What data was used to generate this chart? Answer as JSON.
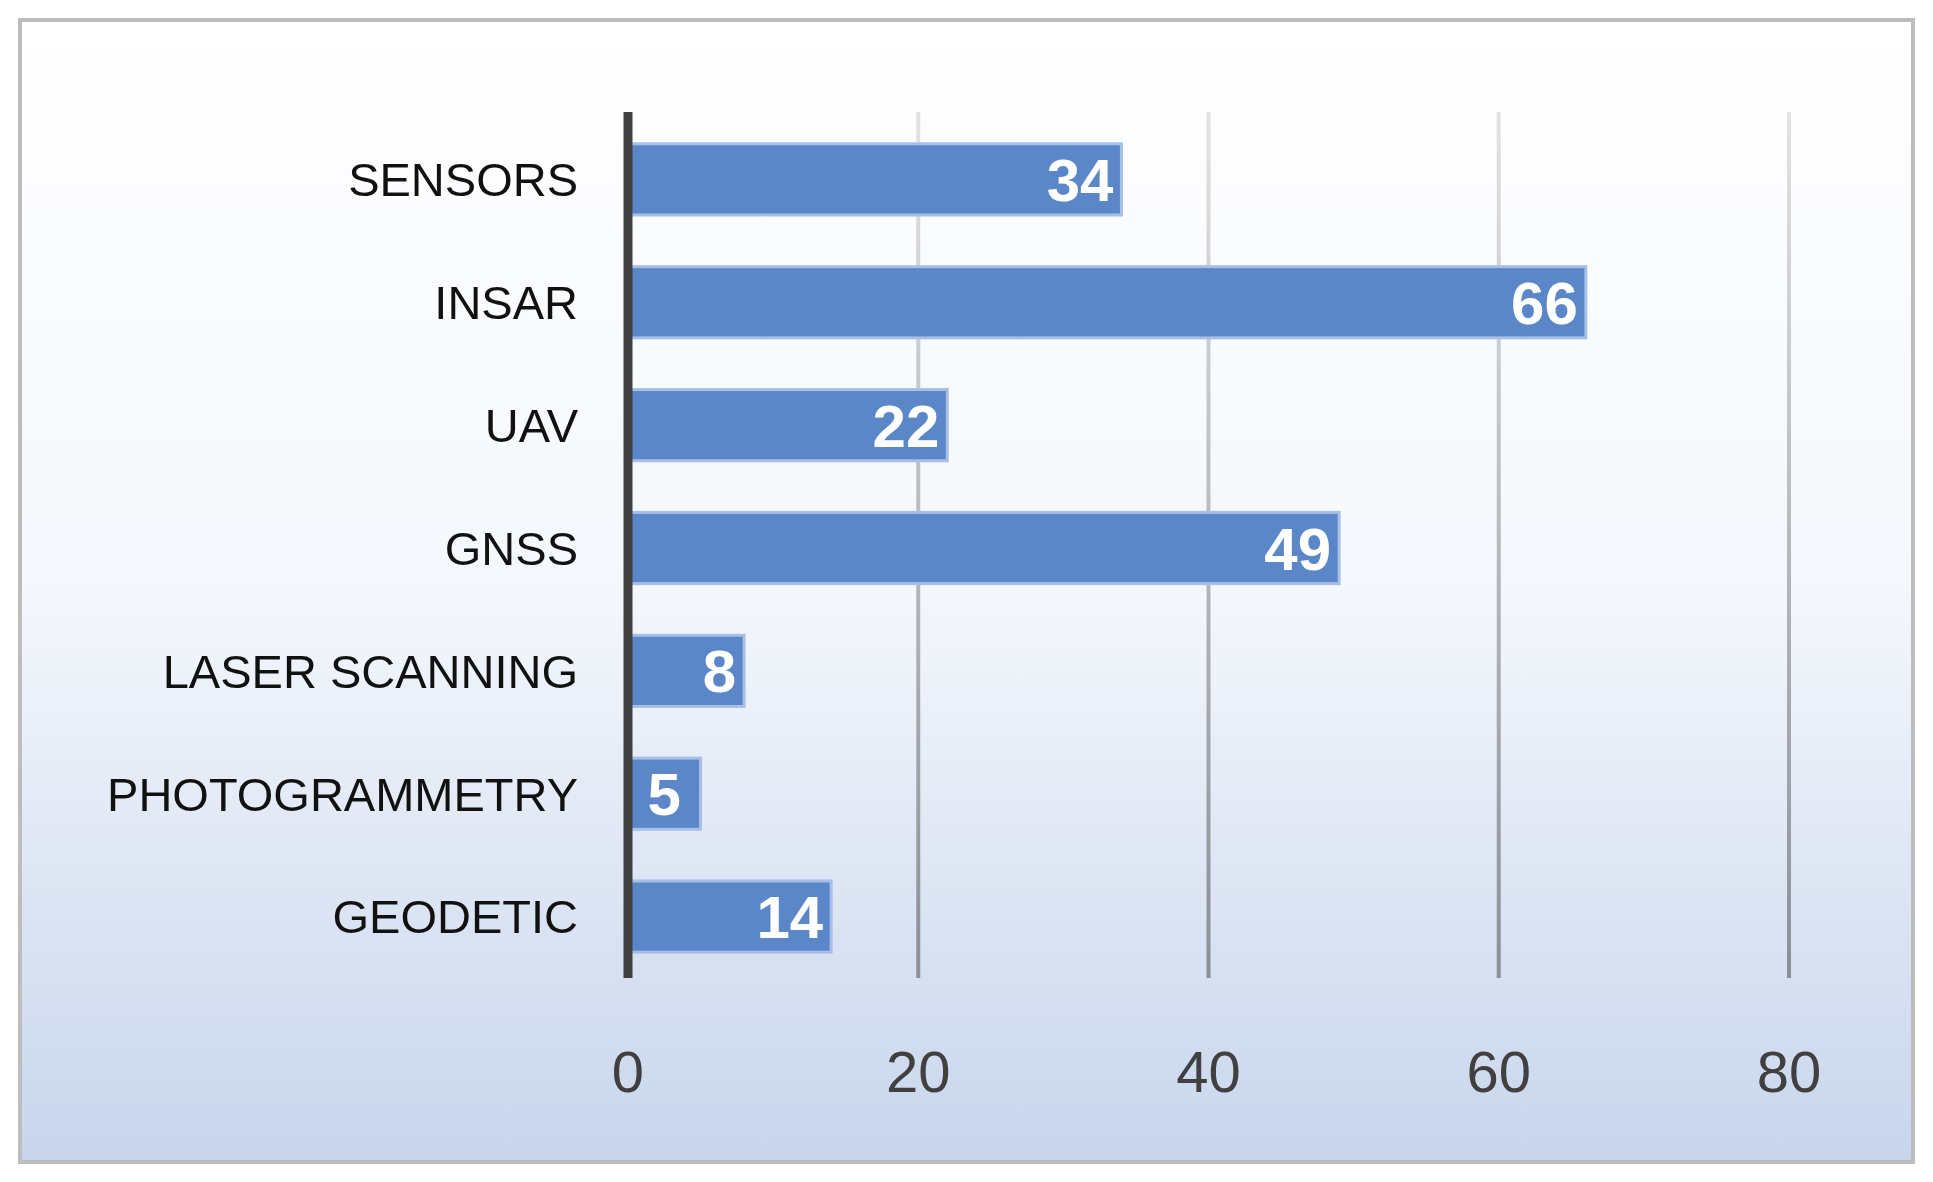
{
  "chart_data": {
    "type": "bar",
    "orientation": "horizontal",
    "categories": [
      "SENSORS",
      "INSAR",
      "UAV",
      "GNSS",
      "LASER SCANNING",
      "PHOTOGRAMMETRY",
      "GEODETIC"
    ],
    "values": [
      34,
      66,
      22,
      49,
      8,
      5,
      14
    ],
    "color": "#5b87c9",
    "xlim": [
      0,
      80
    ],
    "xticks": [
      0,
      20,
      40,
      60,
      80
    ],
    "grid": "x",
    "data_labels": true
  }
}
